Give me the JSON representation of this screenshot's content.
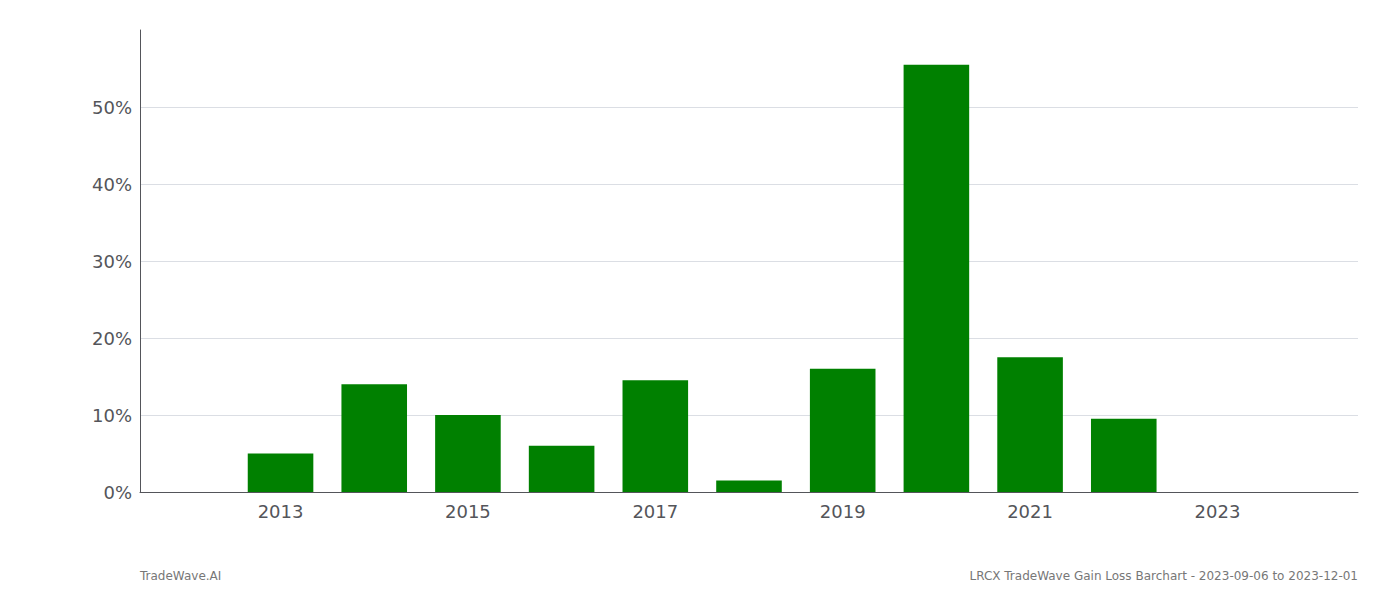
{
  "chart_data": {
    "type": "bar",
    "x": [
      2013,
      2014,
      2015,
      2016,
      2017,
      2018,
      2019,
      2020,
      2021,
      2022
    ],
    "values": [
      0.05,
      0.14,
      0.1,
      0.06,
      0.145,
      0.015,
      0.16,
      0.555,
      0.175,
      0.095
    ],
    "color": "#008000",
    "xlim": [
      2011.5,
      2024.5
    ],
    "xticks": [
      2013,
      2015,
      2017,
      2019,
      2021,
      2023
    ],
    "ylim": [
      0,
      0.6
    ],
    "yticks": [
      {
        "value": 0.0,
        "label": "0%"
      },
      {
        "value": 0.1,
        "label": "10%"
      },
      {
        "value": 0.2,
        "label": "20%"
      },
      {
        "value": 0.3,
        "label": "30%"
      },
      {
        "value": 0.4,
        "label": "40%"
      },
      {
        "value": 0.5,
        "label": "50%"
      }
    ],
    "grid": true,
    "annotations": [
      "TradeWave.AI",
      "LRCX TradeWave Gain Loss Barchart - 2023-09-06 to 2023-12-01"
    ]
  }
}
